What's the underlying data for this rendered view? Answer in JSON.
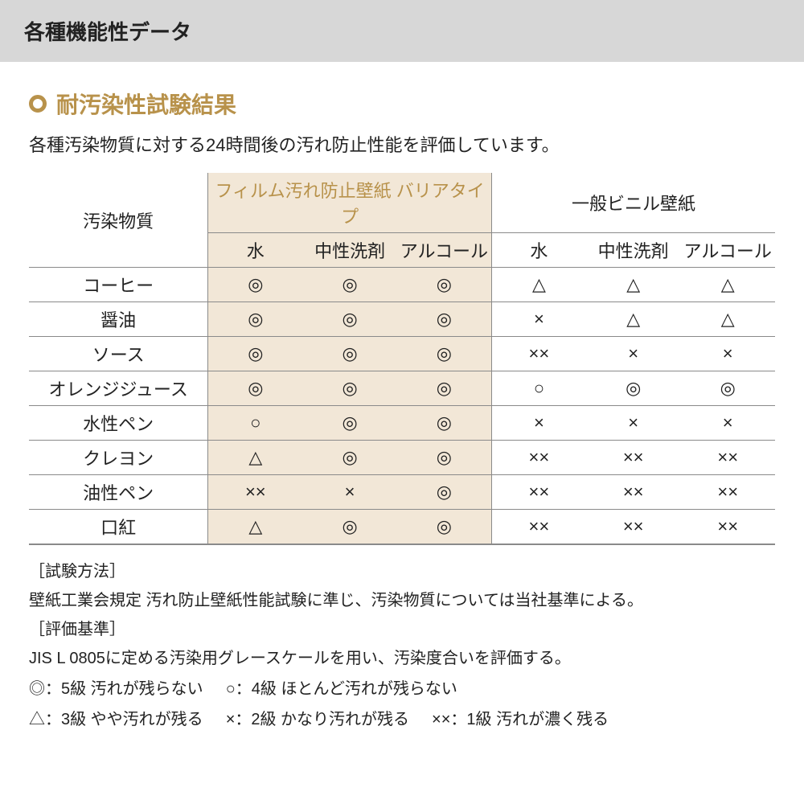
{
  "colors": {
    "header_bg": "#d7d7d7",
    "accent": "#b8924b",
    "film_bg": "#f2e7d7",
    "border": "#8a8a8a",
    "text": "#222222"
  },
  "header": {
    "title": "各種機能性データ"
  },
  "section": {
    "title": "耐汚染性試験結果",
    "subtitle": "各種汚染物質に対する24時間後の汚れ防止性能を評価しています。"
  },
  "table": {
    "row_header": "汚染物質",
    "groups": [
      {
        "label": "フィルム汚れ防止壁紙 バリアタイプ",
        "highlight": true
      },
      {
        "label": "一般ビニル壁紙",
        "highlight": false
      }
    ],
    "sub_columns": [
      "水",
      "中性洗剤",
      "アルコール",
      "水",
      "中性洗剤",
      "アルコール"
    ],
    "rows": [
      {
        "label": "コーヒー",
        "cells": [
          "◎",
          "◎",
          "◎",
          "△",
          "△",
          "△"
        ]
      },
      {
        "label": "醤油",
        "cells": [
          "◎",
          "◎",
          "◎",
          "×",
          "△",
          "△"
        ]
      },
      {
        "label": "ソース",
        "cells": [
          "◎",
          "◎",
          "◎",
          "××",
          "×",
          "×"
        ]
      },
      {
        "label": "オレンジジュース",
        "cells": [
          "◎",
          "◎",
          "◎",
          "○",
          "◎",
          "◎"
        ]
      },
      {
        "label": "水性ペン",
        "cells": [
          "○",
          "◎",
          "◎",
          "×",
          "×",
          "×"
        ]
      },
      {
        "label": "クレヨン",
        "cells": [
          "△",
          "◎",
          "◎",
          "××",
          "××",
          "××"
        ]
      },
      {
        "label": "油性ペン",
        "cells": [
          "××",
          "×",
          "◎",
          "××",
          "××",
          "××"
        ]
      },
      {
        "label": "口紅",
        "cells": [
          "△",
          "◎",
          "◎",
          "××",
          "××",
          "××"
        ]
      }
    ]
  },
  "notes": {
    "method_label": "［試験方法］",
    "method_text": "壁紙工業会規定 汚れ防止壁紙性能試験に準じ、汚染物質については当社基準による。",
    "criteria_label": "［評価基準］",
    "criteria_text": "JIS L 0805に定める汚染用グレースケールを用い、汚染度合いを評価する。",
    "legend": [
      "◎：5級 汚れが残らない",
      "○：4級 ほとんど汚れが残らない",
      "△：3級 やや汚れが残る",
      "×：2級 かなり汚れが残る",
      "××：1級 汚れが濃く残る"
    ]
  }
}
